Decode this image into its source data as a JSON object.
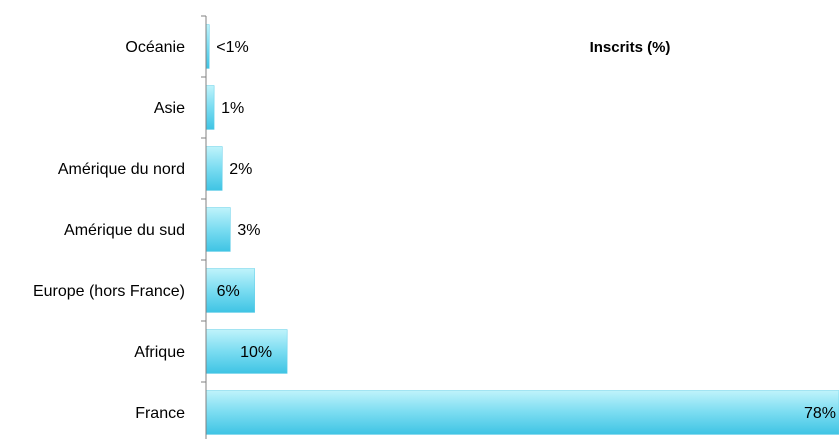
{
  "chart_data": {
    "type": "bar",
    "orientation": "horizontal",
    "title": "Inscrits (%)",
    "categories": [
      "Océanie",
      "Asie",
      "Amérique du nord",
      "Amérique du sud",
      "Europe (hors France)",
      "Afrique",
      "France"
    ],
    "values": [
      0.4,
      1,
      2,
      3,
      6,
      10,
      78
    ],
    "data_labels": [
      "<1%",
      "1%",
      "2%",
      "3%",
      "6%",
      "10%",
      "78%"
    ],
    "xlim": [
      0,
      78
    ],
    "grid": false,
    "legend": "none",
    "colors": {
      "bar_light": "#a6ecf8",
      "bar_mid": "#6fd8ef",
      "bar_dark": "#3ac6e6",
      "axis": "#808080",
      "text": "#000000"
    }
  }
}
